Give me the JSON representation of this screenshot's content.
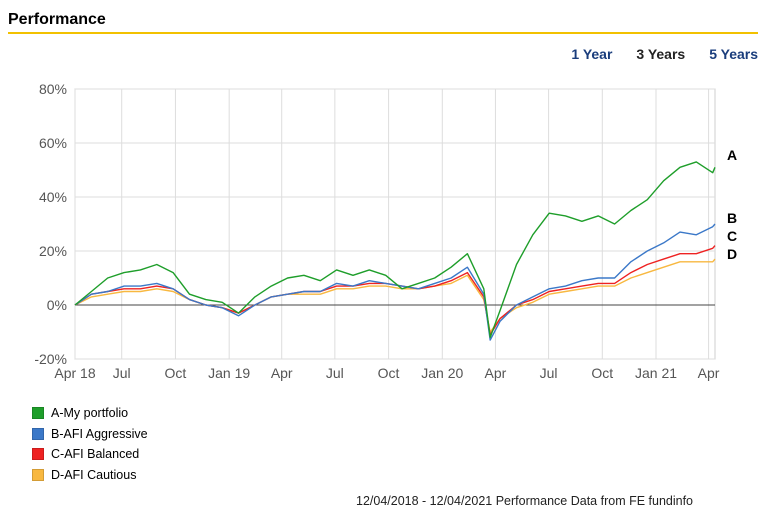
{
  "header": {
    "title": "Performance"
  },
  "period_tabs": [
    {
      "label": "1 Year",
      "active": false
    },
    {
      "label": "3 Years",
      "active": true
    },
    {
      "label": "5 Years",
      "active": false
    }
  ],
  "footer": {
    "note": "12/04/2018 - 12/04/2021 Performance Data from FE fundinfo"
  },
  "colors": {
    "A": "#1e9e2a",
    "B": "#3b78c8",
    "C": "#ee2222",
    "D": "#f8b840",
    "gridline": "#dddddd",
    "zero_line": "#444444"
  },
  "chart_data": {
    "type": "line",
    "title": "",
    "xlabel": "",
    "ylabel": "",
    "x_range": [
      "2018-04-12",
      "2021-04-12"
    ],
    "ylim": [
      -20,
      80
    ],
    "grid": true,
    "legend_position": "bottom-left",
    "y_ticks": [
      -20,
      0,
      20,
      40,
      60,
      80
    ],
    "y_tick_labels": [
      "-20%",
      "0%",
      "20%",
      "40%",
      "60%",
      "80%"
    ],
    "x_ticks": [
      "2018-04-12",
      "2018-07-01",
      "2018-10-01",
      "2019-01-01",
      "2019-04-01",
      "2019-07-01",
      "2019-10-01",
      "2020-01-01",
      "2020-04-01",
      "2020-07-01",
      "2020-10-01",
      "2021-01-01",
      "2021-04-01"
    ],
    "x_tick_labels": [
      "Apr 18",
      "Jul",
      "Oct",
      "Jan 19",
      "Apr",
      "Jul",
      "Oct",
      "Jan 20",
      "Apr",
      "Jul",
      "Oct",
      "Jan 21",
      "Apr"
    ],
    "dates": [
      "2018-04-12",
      "2018-05-10",
      "2018-06-07",
      "2018-07-05",
      "2018-08-02",
      "2018-08-30",
      "2018-09-27",
      "2018-10-25",
      "2018-11-22",
      "2018-12-20",
      "2019-01-17",
      "2019-02-14",
      "2019-03-14",
      "2019-04-11",
      "2019-05-09",
      "2019-06-06",
      "2019-07-04",
      "2019-08-01",
      "2019-08-29",
      "2019-09-26",
      "2019-10-24",
      "2019-11-21",
      "2019-12-19",
      "2020-01-16",
      "2020-02-13",
      "2020-03-12",
      "2020-03-23",
      "2020-04-09",
      "2020-05-07",
      "2020-06-04",
      "2020-07-02",
      "2020-07-30",
      "2020-08-27",
      "2020-09-24",
      "2020-10-22",
      "2020-11-19",
      "2020-12-17",
      "2021-01-14",
      "2021-02-11",
      "2021-03-11",
      "2021-04-08",
      "2021-04-12"
    ],
    "series": [
      {
        "name": "A-My portfolio",
        "label": "A",
        "values": [
          0,
          5,
          10,
          12,
          13,
          15,
          12,
          4,
          2,
          1,
          -3,
          3,
          7,
          10,
          11,
          9,
          13,
          11,
          13,
          11,
          6,
          8,
          10,
          14,
          19,
          6,
          -12,
          -2,
          15,
          26,
          34,
          33,
          31,
          33,
          30,
          35,
          39,
          46,
          51,
          53,
          49,
          51
        ]
      },
      {
        "name": "B-AFI Aggressive",
        "label": "B",
        "values": [
          0,
          4,
          5,
          7,
          7,
          8,
          6,
          2,
          0,
          -1,
          -4,
          0,
          3,
          4,
          5,
          5,
          8,
          7,
          9,
          8,
          7,
          6,
          8,
          10,
          14,
          4,
          -13,
          -6,
          0,
          3,
          6,
          7,
          9,
          10,
          10,
          16,
          20,
          23,
          27,
          26,
          29,
          30
        ]
      },
      {
        "name": "C-AFI Balanced",
        "label": "C",
        "values": [
          0,
          4,
          5,
          6,
          6,
          7,
          6,
          2,
          0,
          -1,
          -3,
          0,
          3,
          4,
          5,
          5,
          7,
          7,
          8,
          8,
          7,
          6,
          7,
          9,
          12,
          3,
          -11,
          -5,
          0,
          2,
          5,
          6,
          7,
          8,
          8,
          12,
          15,
          17,
          19,
          19,
          21,
          22
        ]
      },
      {
        "name": "D-AFI Cautious",
        "label": "D",
        "values": [
          0,
          3,
          4,
          5,
          5,
          6,
          5,
          2,
          0,
          -1,
          -3,
          0,
          3,
          4,
          4,
          4,
          6,
          6,
          7,
          7,
          6,
          6,
          7,
          8,
          11,
          2,
          -10,
          -5,
          -1,
          1,
          4,
          5,
          6,
          7,
          7,
          10,
          12,
          14,
          16,
          16,
          16,
          17
        ]
      }
    ]
  }
}
